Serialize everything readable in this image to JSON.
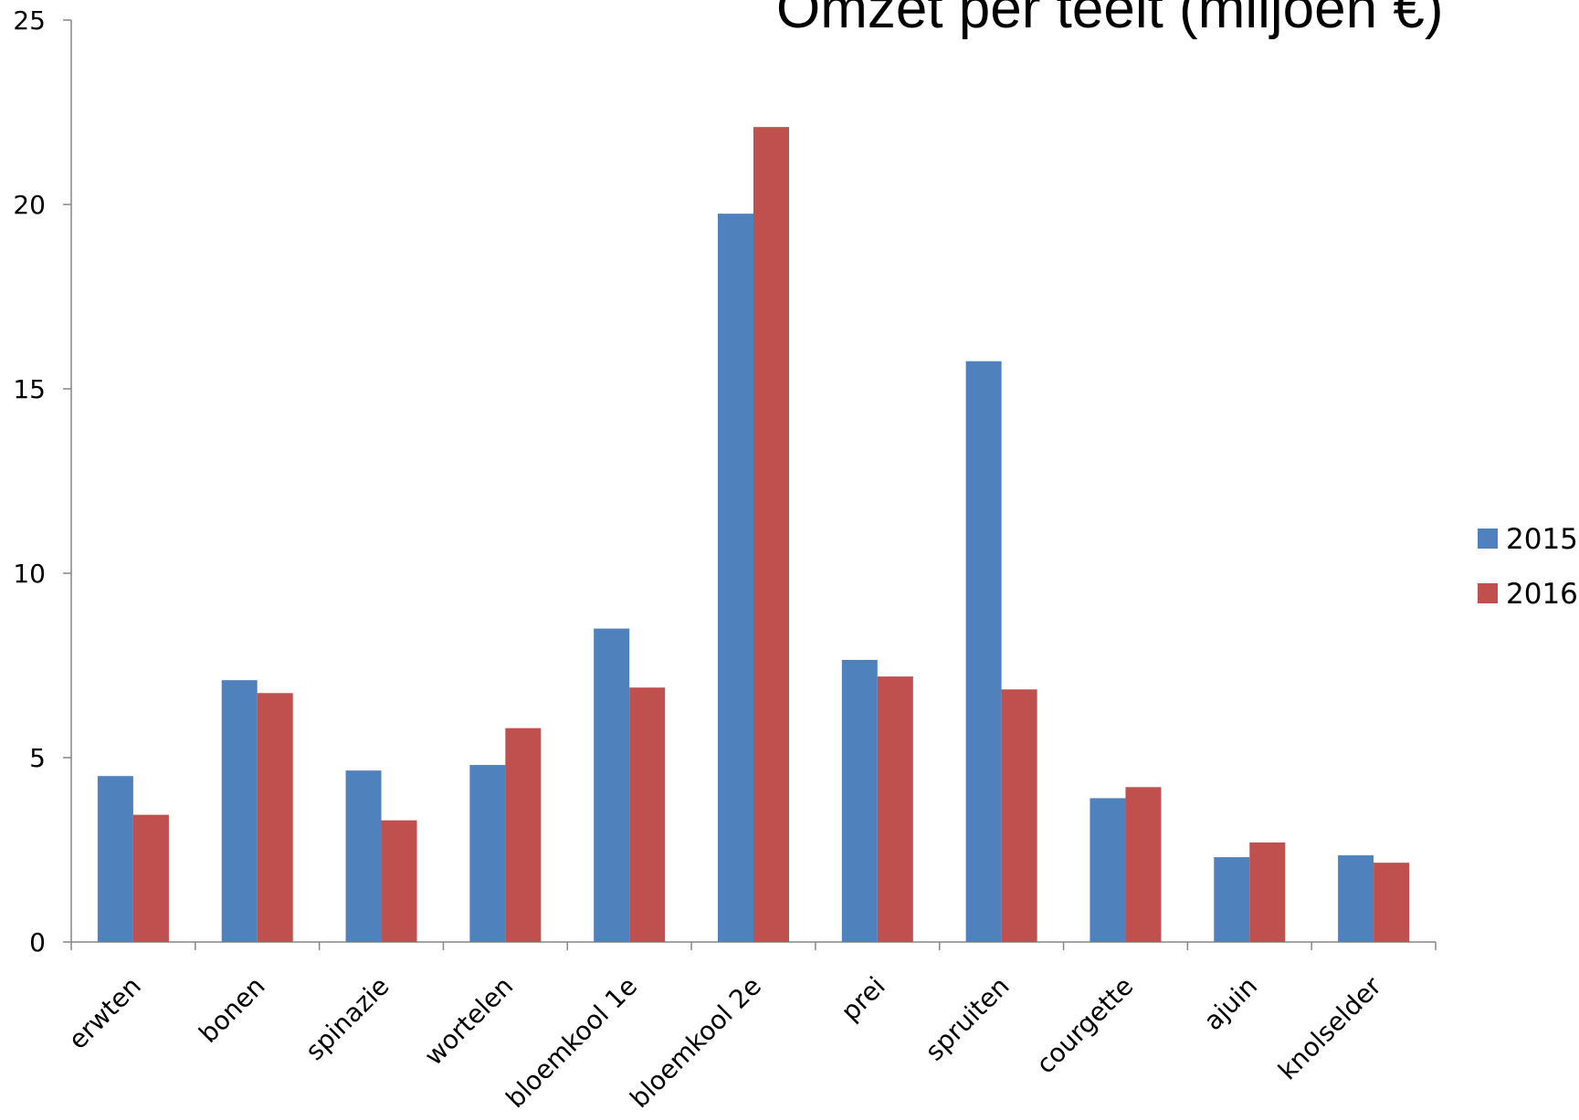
{
  "chart_data": {
    "type": "bar",
    "title": "Omzet per teelt (miljoen €)",
    "xlabel": "",
    "ylabel": "",
    "categories": [
      "erwten",
      "bonen",
      "spinazie",
      "wortelen",
      "bloemkool 1e",
      "bloemkool 2e",
      "prei",
      "spruiten",
      "courgette",
      "ajuin",
      "knolselder"
    ],
    "series": [
      {
        "name": "2015",
        "color": "#4F81BD",
        "values": [
          4.5,
          7.1,
          4.65,
          4.8,
          8.5,
          19.75,
          7.65,
          15.75,
          3.9,
          2.3,
          2.35
        ]
      },
      {
        "name": "2016",
        "color": "#C0504D",
        "values": [
          3.45,
          6.75,
          3.3,
          5.8,
          6.9,
          22.1,
          7.2,
          6.85,
          4.2,
          2.7,
          2.15
        ]
      }
    ],
    "ylim": [
      0,
      25
    ],
    "yticks": [
      0,
      5,
      10,
      15,
      20,
      25
    ],
    "grid": false,
    "legend_position": "right"
  }
}
